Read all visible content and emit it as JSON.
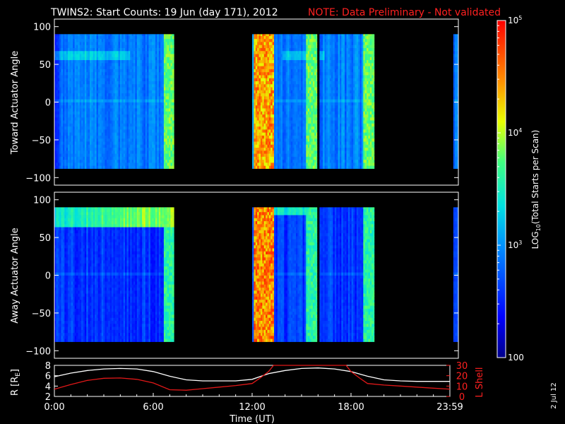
{
  "header": {
    "title": "TWINS2: Start Counts: 19 Jun (day 171), 2012",
    "note": "NOTE: Data Preliminary - Not validated"
  },
  "colors": {
    "note": "#ff2020",
    "r_line": "#ffffff",
    "lshell_line": "#e01818",
    "background": "#000000"
  },
  "colorbar": {
    "label": "LOG10(Total Starts per Scan)",
    "label_parts": {
      "pre": "LOG",
      "sub": "10",
      "post": "(Total Starts per Scan)"
    },
    "scale": "log",
    "range": [
      100,
      100000
    ],
    "ticks": [
      {
        "value": 100,
        "label": "100"
      },
      {
        "value": 1000,
        "base": "10",
        "exp": "3"
      },
      {
        "value": 10000,
        "base": "10",
        "exp": "4"
      },
      {
        "value": 100000,
        "base": "10",
        "exp": "5"
      }
    ]
  },
  "date_stamp": "2 Jul 12",
  "chart_data": [
    {
      "type": "heatmap",
      "panel": "toward",
      "ylabel": "Toward Actuator Angle",
      "xlim": [
        0,
        24
      ],
      "ylim": [
        -110,
        110
      ],
      "y_ticks": [
        100,
        50,
        0,
        -50,
        -100
      ],
      "data_angle_range": [
        -88,
        90
      ],
      "data_segments": [
        {
          "start": 0.0,
          "end": 7.1
        },
        {
          "start": 11.75,
          "end": 15.6
        },
        {
          "start": 15.75,
          "end": 19.0
        },
        {
          "start": 23.7,
          "end": 24.0
        }
      ],
      "approx_log_counts": {
        "quiet_background": 2.9,
        "high_activity_12h_13h": 4.4,
        "edge_before_gaps": 3.8
      }
    },
    {
      "type": "heatmap",
      "panel": "away",
      "ylabel": "Away Actuator Angle",
      "xlim": [
        0,
        24
      ],
      "ylim": [
        -110,
        110
      ],
      "y_ticks": [
        100,
        50,
        0,
        -50,
        -100
      ],
      "data_angle_range": [
        -88,
        90
      ],
      "data_segments": [
        {
          "start": 0.0,
          "end": 7.1
        },
        {
          "start": 11.75,
          "end": 15.6
        },
        {
          "start": 15.75,
          "end": 19.0
        },
        {
          "start": 23.7,
          "end": 24.0
        }
      ],
      "approx_log_counts": {
        "quiet_background": 2.6,
        "high_band_60_90deg": 3.9,
        "high_activity_12h_13h": 4.5
      }
    },
    {
      "type": "line",
      "panel": "orbit",
      "xlabel": "Time (UT)",
      "xlim": [
        0,
        24
      ],
      "x_tick_labels": [
        {
          "value": 0,
          "label": "0:00"
        },
        {
          "value": 6,
          "label": "6:00"
        },
        {
          "value": 12,
          "label": "12:00"
        },
        {
          "value": 18,
          "label": "18:00"
        },
        {
          "value": 24,
          "label": "23:59"
        }
      ],
      "y_left": {
        "label_pre": "R [R",
        "label_sub": "E",
        "label_post": "]",
        "ylim": [
          2,
          8
        ],
        "ticks": [
          2,
          4,
          6,
          8
        ]
      },
      "y_right": {
        "label": "L Shell",
        "ylim": [
          0,
          30
        ],
        "ticks": [
          0,
          10,
          20,
          30
        ]
      },
      "series": [
        {
          "axis": "left",
          "x": [
            0,
            1,
            2,
            3,
            4,
            5,
            6,
            7,
            8,
            9,
            10,
            11,
            12,
            13,
            14,
            15,
            16,
            17,
            18,
            19,
            20,
            21,
            22,
            23,
            24
          ],
          "y": [
            5.8,
            6.5,
            7.0,
            7.3,
            7.4,
            7.3,
            6.8,
            5.9,
            5.2,
            5.0,
            5.0,
            5.0,
            5.3,
            6.4,
            7.0,
            7.4,
            7.5,
            7.3,
            6.8,
            5.9,
            5.2,
            5.0,
            4.9,
            4.9,
            4.9
          ]
        },
        {
          "axis": "right",
          "x": [
            0,
            1,
            2,
            3,
            4,
            5,
            6,
            7,
            8,
            9,
            10,
            11,
            12,
            12.5,
            13,
            13.3,
            17.7,
            18.0,
            18.5,
            19,
            20,
            21,
            22,
            23,
            24
          ],
          "y": [
            7.0,
            11.5,
            15.5,
            17.5,
            17.8,
            16.5,
            13.0,
            6.5,
            6.0,
            7.5,
            9.0,
            10.5,
            12.5,
            18.0,
            24.0,
            30.0,
            30.0,
            24.0,
            18.0,
            12.5,
            11.0,
            10.0,
            9.0,
            8.0,
            7.0
          ]
        }
      ]
    }
  ]
}
